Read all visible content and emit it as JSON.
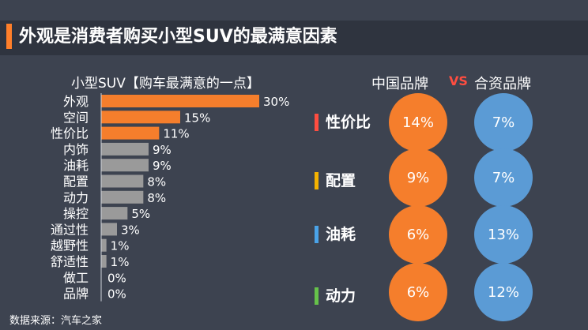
{
  "page": {
    "title": "外观是消费者购买小型SUV的最满意因素",
    "source": "数据来源：汽车之家"
  },
  "colors": {
    "bg": "#3d4350",
    "orange": "#f57e2c",
    "gray": "#9a9a9a",
    "blue": "#5b9bd5",
    "red": "#ff4d40",
    "yellow": "#f5b300",
    "light_blue": "#4aa3e8",
    "green": "#66c24a"
  },
  "chart_data": [
    {
      "type": "bar",
      "orientation": "horizontal",
      "title": "小型SUV【购车最满意的一点】",
      "categories": [
        "外观",
        "空间",
        "性价比",
        "内饰",
        "油耗",
        "配置",
        "动力",
        "操控",
        "通过性",
        "越野性",
        "舒适性",
        "做工",
        "品牌"
      ],
      "values": [
        30,
        15,
        11,
        9,
        9,
        8,
        8,
        5,
        3,
        1,
        1,
        0,
        0
      ],
      "value_labels": [
        "30%",
        "15%",
        "11%",
        "9%",
        "9%",
        "8%",
        "8%",
        "5%",
        "3%",
        "1%",
        "1%",
        "0%",
        "0%"
      ],
      "highlight_top": 3,
      "unit": "%",
      "xlim": [
        0,
        30
      ]
    },
    {
      "type": "table",
      "title": "中国品牌 VS 合资品牌",
      "columns": [
        "中国品牌",
        "合资品牌"
      ],
      "vs_label": "VS",
      "metrics": [
        {
          "label": "性价比",
          "color": "#ff4d40",
          "china": "14%",
          "jv": "7%"
        },
        {
          "label": "配置",
          "color": "#f5b300",
          "china": "9%",
          "jv": "7%"
        },
        {
          "label": "油耗",
          "color": "#4aa3e8",
          "china": "6%",
          "jv": "13%"
        },
        {
          "label": "动力",
          "color": "#66c24a",
          "china": "6%",
          "jv": "12%"
        }
      ]
    }
  ]
}
